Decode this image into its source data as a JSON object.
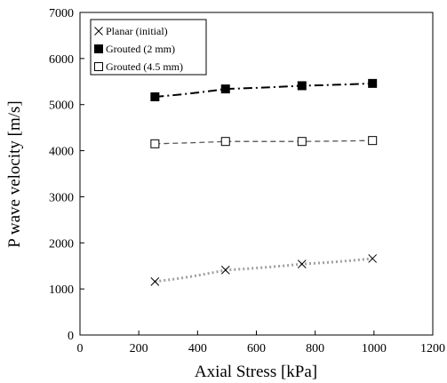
{
  "chart_data": {
    "type": "scatter",
    "xlabel": "Axial Stress [kPa]",
    "ylabel": "P wave velocity [m/s]",
    "xlim": [
      0,
      1200
    ],
    "ylim": [
      0,
      7000
    ],
    "xticks": [
      0,
      200,
      400,
      600,
      800,
      1000,
      1200
    ],
    "yticks": [
      0,
      1000,
      2000,
      3000,
      4000,
      5000,
      6000,
      7000
    ],
    "grid": false,
    "legend_position": "top-left",
    "series": [
      {
        "name": "Planar (initial)",
        "marker": "x",
        "line_style": "dotted",
        "line_color": "#a0a0a0",
        "x": [
          255,
          495,
          755,
          995
        ],
        "y": [
          1160,
          1410,
          1540,
          1660
        ]
      },
      {
        "name": "Grouted (2 mm)",
        "marker": "filled-square",
        "line_style": "dash-dot",
        "line_color": "#000000",
        "x": [
          255,
          495,
          755,
          995
        ],
        "y": [
          5170,
          5340,
          5410,
          5460
        ]
      },
      {
        "name": "Grouted (4.5 mm)",
        "marker": "open-square",
        "line_style": "dashed",
        "line_color": "#555555",
        "x": [
          255,
          495,
          755,
          995
        ],
        "y": [
          4150,
          4200,
          4200,
          4220
        ]
      }
    ]
  }
}
